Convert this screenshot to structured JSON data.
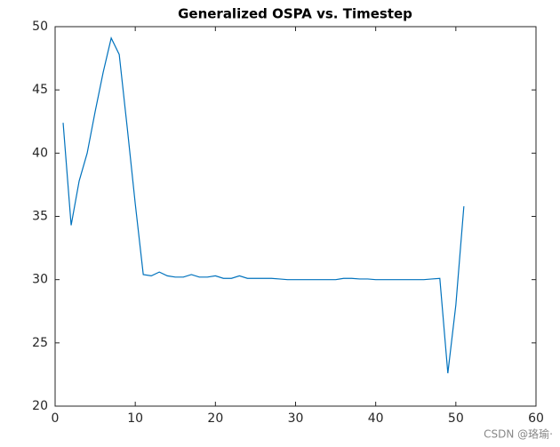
{
  "chart_data": {
    "type": "line",
    "title": "Generalized OSPA vs. Timestep",
    "x": [
      1,
      2,
      3,
      4,
      5,
      6,
      7,
      8,
      9,
      10,
      11,
      12,
      13,
      14,
      15,
      16,
      17,
      18,
      19,
      20,
      21,
      22,
      23,
      24,
      25,
      26,
      27,
      28,
      29,
      30,
      31,
      32,
      33,
      34,
      35,
      36,
      37,
      38,
      39,
      40,
      41,
      42,
      43,
      44,
      45,
      46,
      47,
      48,
      49,
      50,
      51
    ],
    "series": [
      {
        "color": "#0072bd",
        "values": [
          42.4,
          34.3,
          37.8,
          40.0,
          43.3,
          46.4,
          49.1,
          47.8,
          42.0,
          36.0,
          30.4,
          30.3,
          30.6,
          30.3,
          30.2,
          30.2,
          30.4,
          30.2,
          30.2,
          30.3,
          30.1,
          30.1,
          30.3,
          30.1,
          30.1,
          30.1,
          30.1,
          30.05,
          30.0,
          30.0,
          30.0,
          30.0,
          30.0,
          30.0,
          30.0,
          30.1,
          30.1,
          30.05,
          30.05,
          30.0,
          30.0,
          30.0,
          30.0,
          30.0,
          30.0,
          30.0,
          30.05,
          30.1,
          22.6,
          28.0,
          35.8
        ]
      }
    ],
    "xlim": [
      0,
      60
    ],
    "xticks": [
      0,
      10,
      20,
      30,
      40,
      50,
      60
    ],
    "ylim": [
      20,
      50
    ],
    "yticks": [
      20,
      25,
      30,
      35,
      40,
      45,
      50
    ]
  },
  "watermark": "CSDN @珞瑜·"
}
